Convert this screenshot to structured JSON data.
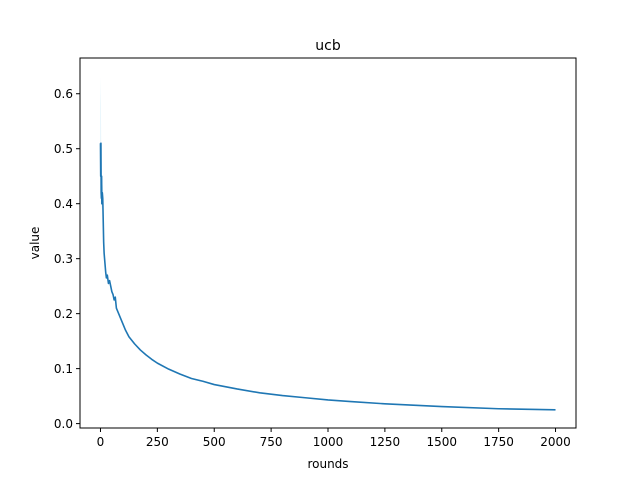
{
  "chart_data": {
    "type": "line",
    "title": "ucb",
    "xlabel": "rounds",
    "ylabel": "value",
    "xlim": [
      -90,
      2090
    ],
    "ylim": [
      -0.008,
      0.665
    ],
    "xticks": [
      0,
      250,
      500,
      750,
      1000,
      1250,
      1500,
      1750,
      2000
    ],
    "xtick_labels": [
      "0",
      "250",
      "500",
      "750",
      "1000",
      "1250",
      "1500",
      "1750",
      "2000"
    ],
    "yticks": [
      0.0,
      0.1,
      0.2,
      0.3,
      0.4,
      0.5,
      0.6
    ],
    "ytick_labels": [
      "0.0",
      "0.1",
      "0.2",
      "0.3",
      "0.4",
      "0.5",
      "0.6"
    ],
    "grid": false,
    "line_color": "#1f77b4",
    "band_color": "#a6dcef",
    "series": [
      {
        "x": [
          0,
          1,
          2,
          3,
          4,
          5,
          6,
          8,
          10,
          12,
          14,
          16,
          18,
          20,
          23,
          26,
          30,
          35,
          40,
          45,
          50,
          55,
          60,
          65,
          70,
          80,
          90,
          100,
          110,
          125,
          150,
          175,
          200,
          225,
          250,
          300,
          350,
          400,
          450,
          500,
          600,
          700,
          800,
          900,
          1000,
          1100,
          1250,
          1500,
          1750,
          2000
        ],
        "values": [
          0.51,
          0.45,
          0.51,
          0.42,
          0.41,
          0.45,
          0.4,
          0.42,
          0.41,
          0.37,
          0.33,
          0.31,
          0.3,
          0.29,
          0.275,
          0.265,
          0.27,
          0.255,
          0.26,
          0.25,
          0.24,
          0.235,
          0.225,
          0.23,
          0.21,
          0.2,
          0.19,
          0.18,
          0.17,
          0.158,
          0.145,
          0.134,
          0.125,
          0.117,
          0.11,
          0.099,
          0.09,
          0.082,
          0.077,
          0.071,
          0.063,
          0.056,
          0.051,
          0.047,
          0.043,
          0.04,
          0.036,
          0.031,
          0.027,
          0.025
        ],
        "lower": [
          0.48,
          0.42,
          0.47,
          0.4,
          0.39,
          0.43,
          0.39,
          0.41,
          0.4,
          0.36,
          0.32,
          0.305,
          0.295,
          0.285,
          0.272,
          0.262,
          0.266,
          0.252,
          0.257,
          0.247,
          0.237,
          0.232,
          0.222,
          0.227,
          0.208,
          0.198,
          0.188,
          0.178,
          0.168,
          0.156,
          0.144,
          0.133,
          0.124,
          0.116,
          0.109,
          0.098,
          0.089,
          0.081,
          0.076,
          0.07,
          0.062,
          0.055,
          0.05,
          0.046,
          0.042,
          0.039,
          0.035,
          0.03,
          0.026,
          0.024
        ],
        "upper": [
          0.63,
          0.6,
          0.58,
          0.5,
          0.47,
          0.48,
          0.43,
          0.44,
          0.43,
          0.38,
          0.34,
          0.315,
          0.305,
          0.295,
          0.278,
          0.268,
          0.274,
          0.258,
          0.263,
          0.253,
          0.243,
          0.238,
          0.228,
          0.233,
          0.212,
          0.202,
          0.192,
          0.182,
          0.172,
          0.16,
          0.146,
          0.135,
          0.126,
          0.118,
          0.111,
          0.1,
          0.091,
          0.083,
          0.078,
          0.072,
          0.064,
          0.057,
          0.052,
          0.048,
          0.044,
          0.041,
          0.037,
          0.032,
          0.028,
          0.026
        ]
      }
    ]
  }
}
